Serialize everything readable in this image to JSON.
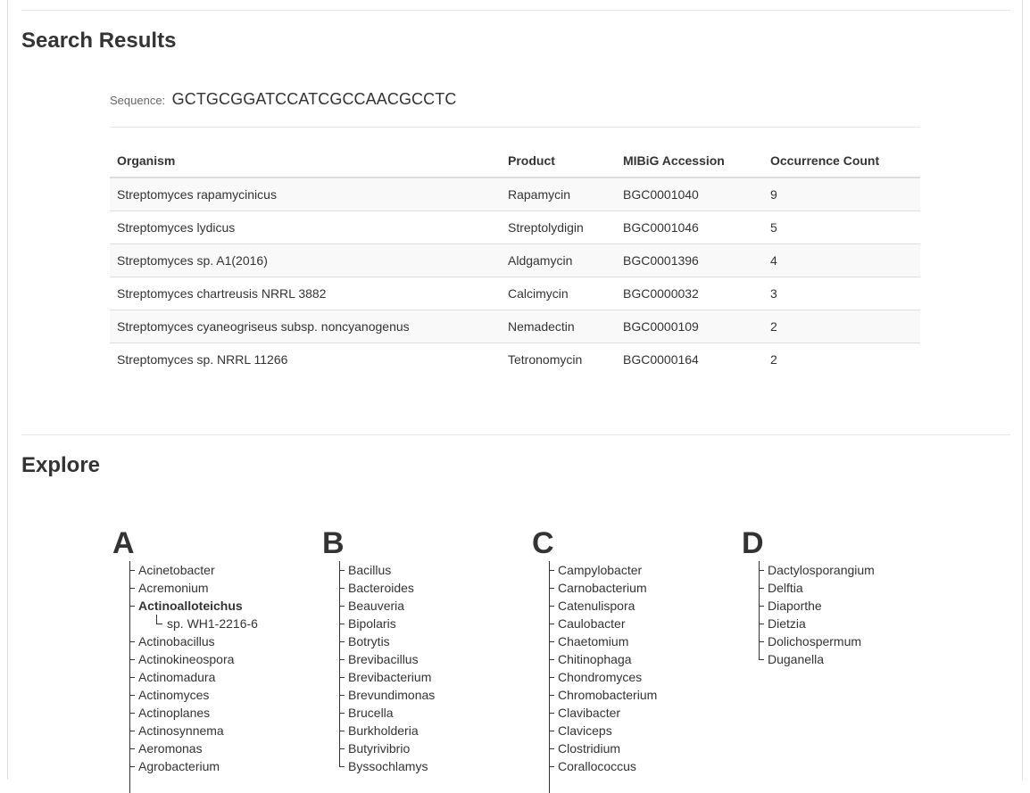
{
  "search": {
    "heading": "Search Results",
    "sequence_label": "Sequence:",
    "sequence_value": "GCTGCGGATCCATCGCCAACGCCTC",
    "columns": [
      "Organism",
      "Product",
      "MIBiG Accession",
      "Occurrence Count"
    ],
    "rows": [
      {
        "organism": "Streptomyces rapamycinicus",
        "product": "Rapamycin",
        "accession": "BGC0001040",
        "count": "9"
      },
      {
        "organism": "Streptomyces lydicus",
        "product": "Streptolydigin",
        "accession": "BGC0001046",
        "count": "5"
      },
      {
        "organism": "Streptomyces sp. A1(2016)",
        "product": "Aldgamycin",
        "accession": "BGC0001396",
        "count": "4"
      },
      {
        "organism": "Streptomyces chartreusis NRRL 3882",
        "product": "Calcimycin",
        "accession": "BGC0000032",
        "count": "3"
      },
      {
        "organism": "Streptomyces cyaneogriseus subsp. noncyanogenus",
        "product": "Nemadectin",
        "accession": "BGC0000109",
        "count": "2"
      },
      {
        "organism": "Streptomyces sp. NRRL 11266",
        "product": "Tetronomycin",
        "accession": "BGC0000164",
        "count": "2"
      }
    ]
  },
  "explore": {
    "heading": "Explore",
    "groups": [
      {
        "letter": "A",
        "items": [
          "Acinetobacter",
          "Acremonium",
          "Actinoalloteichus",
          "sp. WH1-2216-6",
          "Actinobacillus",
          "Actinokineospora",
          "Actinomadura",
          "Actinomyces",
          "Actinoplanes",
          "Actinosynnema",
          "Aeromonas",
          "Agrobacterium"
        ]
      },
      {
        "letter": "B",
        "items": [
          "Bacillus",
          "Bacteroides",
          "Beauveria",
          "Bipolaris",
          "Botrytis",
          "Brevibacillus",
          "Brevibacterium",
          "Brevundimonas",
          "Brucella",
          "Burkholderia",
          "Butyrivibrio",
          "Byssochlamys"
        ]
      },
      {
        "letter": "C",
        "items": [
          "Campylobacter",
          "Carnobacterium",
          "Catenulispora",
          "Caulobacter",
          "Chaetomium",
          "Chitinophaga",
          "Chondromyces",
          "Chromobacterium",
          "Clavibacter",
          "Claviceps",
          "Clostridium",
          "Corallococcus"
        ]
      },
      {
        "letter": "D",
        "items": [
          "Dactylosporangium",
          "Delftia",
          "Diaporthe",
          "Dietzia",
          "Dolichospermum",
          "Duganella"
        ]
      }
    ]
  }
}
